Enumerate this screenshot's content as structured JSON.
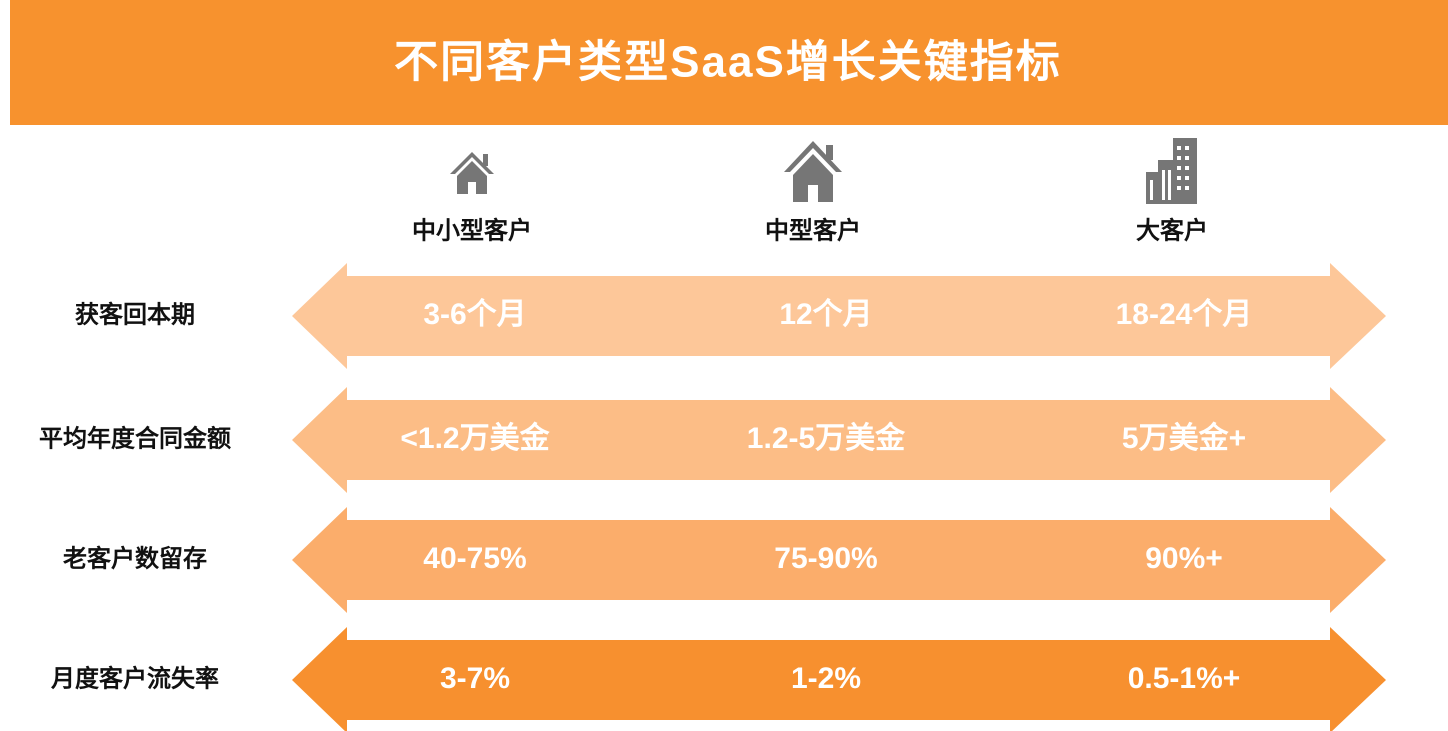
{
  "header": {
    "title": "不同客户类型SaaS增长关键指标"
  },
  "columns": [
    "中小型客户",
    "中型客户",
    "大客户"
  ],
  "rows": [
    {
      "label": "获客回本期",
      "values": [
        "3-6个月",
        "12个月",
        "18-24个月"
      ]
    },
    {
      "label": "平均年度合同金额",
      "values": [
        "<1.2万美金",
        "1.2-5万美金",
        "5万美金+"
      ]
    },
    {
      "label": "老客户数留存",
      "values": [
        "40-75%",
        "75-90%",
        "90%+"
      ]
    },
    {
      "label": "月度客户流失率",
      "values": [
        "3-7%",
        "1-2%",
        "0.5-1%+"
      ]
    }
  ]
}
